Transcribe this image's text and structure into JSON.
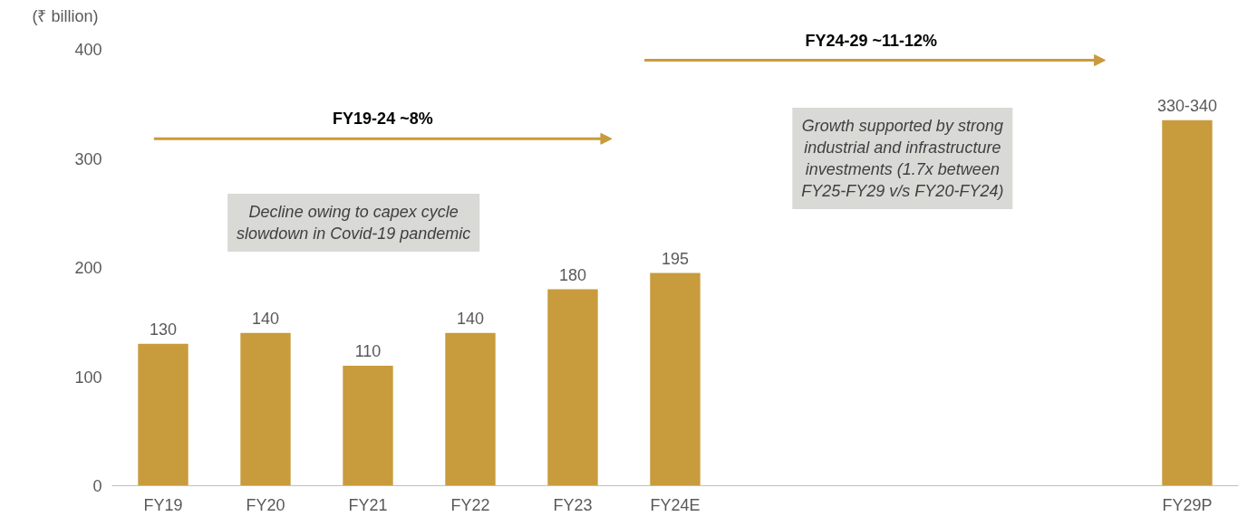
{
  "chart_data": {
    "type": "bar",
    "ylabel": "(₹ billion)",
    "categories": [
      "FY19",
      "FY20",
      "FY21",
      "FY22",
      "FY23",
      "FY24E",
      null,
      null,
      null,
      null,
      "FY29P"
    ],
    "values": [
      130,
      140,
      110,
      140,
      180,
      195,
      null,
      null,
      null,
      null,
      335
    ],
    "value_labels": [
      "130",
      "140",
      "110",
      "140",
      "180",
      "195",
      null,
      null,
      null,
      null,
      "330-340"
    ],
    "color": "#c89b3c",
    "ylim": [
      0,
      400
    ],
    "yticks": [
      0,
      100,
      200,
      300,
      400
    ],
    "grid": false,
    "annotations": [
      "FY19-24 ~8%",
      "FY24-29 ~11-12%",
      "Decline owing to capex cycle slowdown in Covid-19 pandemic",
      "Growth supported by strong industrial and infrastructure investments (1.7x between FY25-FY29 v/s FY20-FY24)"
    ]
  }
}
